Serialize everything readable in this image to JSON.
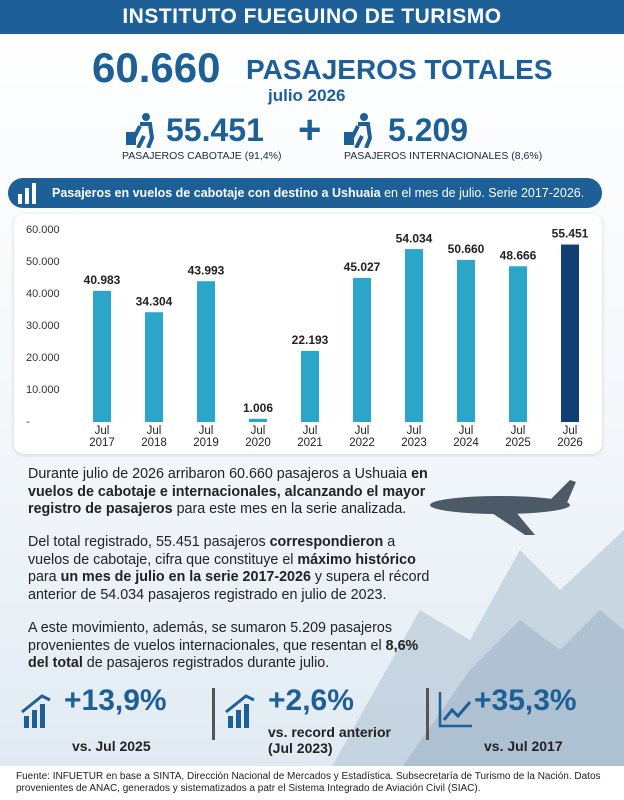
{
  "header": {
    "title": "INSTITUTO FUEGUINO DE TURISMO"
  },
  "summary": {
    "total": "60.660",
    "total_label": "PASAJEROS TOTALES",
    "period": "julio 2026",
    "domestic": "55.451",
    "domestic_label": "PASAJEROS CABOTAJE (91,4%)",
    "plus": "+",
    "international": "5.209",
    "international_label": "PASAJEROS INTERNACIONALES (8,6%)"
  },
  "chart_banner": [
    {
      "text": "Pasajeros en vuelos de cabotaje con destino a Ushuaia",
      "bold": true
    },
    {
      "text": " en el mes de julio. Serie 2017-2026.",
      "bold": false
    }
  ],
  "chart_data": {
    "type": "bar",
    "categories": [
      "Jul 2017",
      "Jul 2018",
      "Jul 2019",
      "Jul 2020",
      "Jul 2021",
      "Jul 2022",
      "Jul 2023",
      "Jul 2024",
      "Jul 2025",
      "Jul 2026"
    ],
    "values": [
      40983,
      34304,
      43993,
      1006,
      22193,
      45027,
      54034,
      50660,
      48666,
      55451
    ],
    "value_labels": [
      "40.983",
      "34.304",
      "43.993",
      "1.006",
      "22.193",
      "45.027",
      "54.034",
      "50.660",
      "48.666",
      "55.451"
    ],
    "colors": [
      "#2ba5c8",
      "#2ba5c8",
      "#2ba5c8",
      "#2ba5c8",
      "#2ba5c8",
      "#2ba5c8",
      "#2ba5c8",
      "#2ba5c8",
      "#2ba5c8",
      "#0f3f73"
    ],
    "ylim": [
      0,
      60000
    ],
    "yticks": [
      {
        "value": 0,
        "label": "-"
      },
      {
        "value": 10000,
        "label": "10.000"
      },
      {
        "value": 20000,
        "label": "20.000"
      },
      {
        "value": 30000,
        "label": "30.000"
      },
      {
        "value": 40000,
        "label": "40.000"
      },
      {
        "value": 50000,
        "label": "50.000"
      },
      {
        "value": 60000,
        "label": "60.000"
      }
    ],
    "grid": false
  },
  "paragraphs": [
    [
      {
        "text": "Durante julio de 2026 arribaron 60.660 pasajeros a Ushuaia ",
        "bold": false
      },
      {
        "text": "en vuelos de cabotaje e internacionales, alcanzando el mayor registro de pasajeros",
        "bold": true
      },
      {
        "text": " para este mes en la serie analizada.",
        "bold": false
      }
    ],
    [
      {
        "text": "Del total registrado, 55.451 pasajeros ",
        "bold": false
      },
      {
        "text": "correspondieron",
        "bold": true
      },
      {
        "text": " a vuelos de cabotaje, cifra que constituye el ",
        "bold": false
      },
      {
        "text": "máximo histórico",
        "bold": true
      },
      {
        "text": " para ",
        "bold": false
      },
      {
        "text": "un mes de julio en la serie 2017-2026",
        "bold": true
      },
      {
        "text": " y supera el récord anterior de 54.034 pasajeros registrado en julio de 2023.",
        "bold": false
      }
    ],
    [
      {
        "text": "A este movimiento, además, se sumaron 5.209 pasajeros provenientes de vuelos internacionales, que resentan el ",
        "bold": false
      },
      {
        "text": "8,6% del total",
        "bold": true
      },
      {
        "text": " de pasajeros registrados durante julio.",
        "bold": false
      }
    ]
  ],
  "stats": [
    {
      "value": "+13,9%",
      "label": "vs. Jul 2025"
    },
    {
      "value": "+2,6%",
      "label": "vs. record anterior (Jul 2023)"
    },
    {
      "value": "+35,3%",
      "label": "vs. Jul 2017"
    }
  ],
  "footer": "Fuente: INFUETUR en base a SINTA, Dirección Nacional de Mercados y Estadística. Subsecretaría de Turismo de la Nación. Datos provenientes de ANAC, generados y sistematizados a patr el Sistema Integrado de Aviación Civil (SIAC)."
}
